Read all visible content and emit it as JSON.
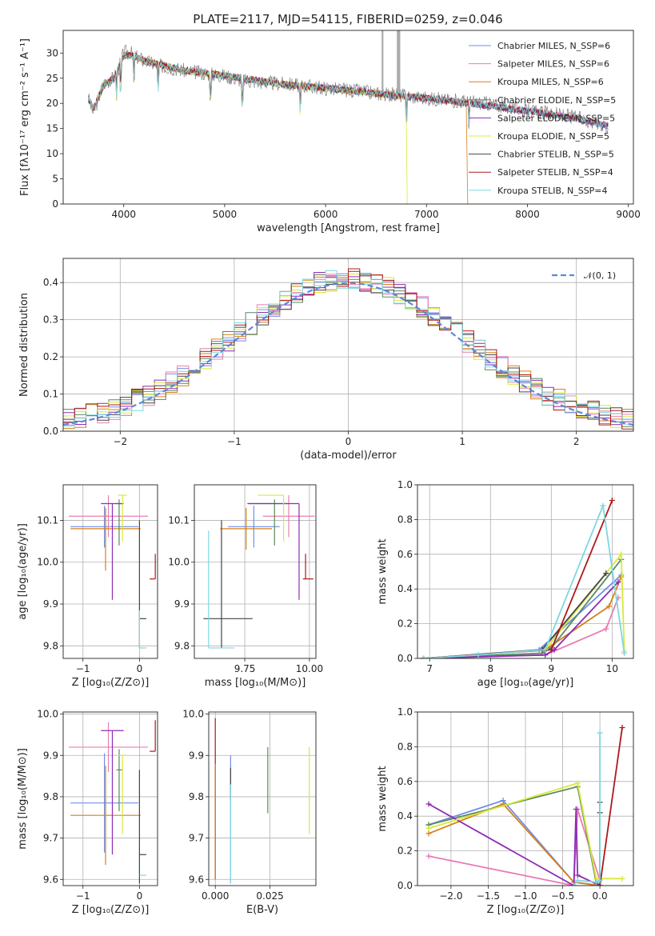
{
  "chart_data": [
    {
      "type": "line",
      "title": "PLATE=2117, MJD=54115, FIBERID=0259, z=0.046",
      "xlabel": "wavelength [Angstrom, rest frame]",
      "ylabel": "Flux [fλ10⁻¹⁷ erg cm⁻² s⁻¹ A⁻¹]",
      "xlim": [
        3400,
        9050
      ],
      "ylim": [
        0,
        34.5
      ],
      "xticks": [
        4000,
        5000,
        6000,
        7000,
        8000,
        9000
      ],
      "yticks": [
        0,
        5,
        10,
        15,
        20,
        25,
        30
      ],
      "grid": false,
      "legend_position": "top-right",
      "observed_spectrum": {
        "wavelength_range": [
          3650,
          8800
        ],
        "color": "#808080",
        "x": [
          3650,
          3700,
          3800,
          3900,
          3950,
          4000,
          4050,
          4100,
          4200,
          4300,
          4400,
          4500,
          4600,
          4800,
          5000,
          5200,
          5500,
          5800,
          6000,
          6300,
          6500,
          6800,
          7000,
          7300,
          7600,
          7800,
          8000,
          8200,
          8400,
          8600,
          8800
        ],
        "y": [
          21,
          18,
          24,
          25,
          27,
          30,
          30.5,
          29.5,
          28.5,
          27.8,
          27.3,
          27,
          26.5,
          26,
          25.5,
          24.5,
          24,
          23.5,
          23,
          22.5,
          22,
          21.5,
          21,
          20.5,
          20,
          19.3,
          18.5,
          18,
          17.5,
          16.5,
          15.5
        ]
      },
      "series": [
        {
          "name": "Chabrier MILES, N_SSP=6",
          "color": "#6f8ee8"
        },
        {
          "name": "Salpeter MILES, N_SSP=6",
          "color": "#e87db3"
        },
        {
          "name": "Kroupa MILES, N_SSP=6",
          "color": "#d6801a"
        },
        {
          "name": "Chabrier ELODIE, N_SSP=5",
          "color": "#5a8a5a"
        },
        {
          "name": "Salpeter ELODIE, N_SSP=5",
          "color": "#8e2cb4"
        },
        {
          "name": "Kroupa ELODIE, N_SSP=5",
          "color": "#d8e83c"
        },
        {
          "name": "Chabrier STELIB, N_SSP=5",
          "color": "#444444"
        },
        {
          "name": "Salpeter STELIB, N_SSP=4",
          "color": "#b01818"
        },
        {
          "name": "Kroupa STELIB, N_SSP=4",
          "color": "#7ed8e0"
        }
      ],
      "model_continuum": {
        "x": [
          3650,
          3700,
          3800,
          3900,
          4000,
          4100,
          4200,
          4400,
          4600,
          5000,
          5500,
          6000,
          6500,
          7000,
          7500,
          8000,
          8500,
          8800
        ],
        "y": [
          21,
          19,
          23.5,
          25,
          29.5,
          29.5,
          28.5,
          27.5,
          26.5,
          25.5,
          24,
          23,
          22,
          21,
          19.8,
          18.5,
          17,
          15.5
        ]
      },
      "series_end_wavelength": [
        8800,
        8800,
        7400,
        8800,
        8800,
        6800,
        8800,
        8800,
        8800
      ],
      "absorption_features": [
        3930,
        3970,
        4100,
        4340,
        4860,
        5175,
        5750,
        6800,
        7420
      ]
    },
    {
      "type": "step",
      "xlabel": "(data-model)/error",
      "ylabel": "Normed distribution",
      "xlim": [
        -2.5,
        2.5
      ],
      "ylim": [
        0,
        0.465
      ],
      "xticks": [
        -2,
        -1,
        0,
        1,
        2
      ],
      "yticks": [
        0.0,
        0.1,
        0.2,
        0.3,
        0.4
      ],
      "grid": true,
      "legend_position": "top-right",
      "legend": [
        "𝒩(0, 1)"
      ],
      "gaussian": {
        "name": "𝒩(0, 1)",
        "mean": 0,
        "sigma": 1,
        "color": "#5e88d8",
        "style": "dashed"
      },
      "bin_edges_range": [
        -2.5,
        2.5
      ],
      "bin_width": 0.1,
      "histograms": [
        {
          "color": "#6f8ee8",
          "seed": 1
        },
        {
          "color": "#e87db3",
          "seed": 2
        },
        {
          "color": "#d6801a",
          "seed": 3
        },
        {
          "color": "#5a8a5a",
          "seed": 4
        },
        {
          "color": "#8e2cb4",
          "seed": 5
        },
        {
          "color": "#d8e83c",
          "seed": 6
        },
        {
          "color": "#444444",
          "seed": 7
        },
        {
          "color": "#b01818",
          "seed": 8
        },
        {
          "color": "#7ed8e0",
          "seed": 9
        }
      ]
    },
    {
      "type": "errorbar",
      "xlabel": "Z [log₁₀(Z/Z⊙)]",
      "ylabel": "age  [log₁₀(age/yr)]",
      "xlim": [
        -1.35,
        0.32
      ],
      "ylim": [
        9.77,
        10.185
      ],
      "xticks": [
        -1,
        0
      ],
      "yticks": [
        9.8,
        9.9,
        10.0,
        10.1
      ],
      "grid": true,
      "points": [
        {
          "color": "#6f8ee8",
          "x": -0.62,
          "y": 10.085,
          "xerr": [
            0.6,
            0.6
          ],
          "yerr": [
            0.05,
            0.05
          ]
        },
        {
          "color": "#e87db3",
          "x": -0.55,
          "y": 10.11,
          "xerr": [
            0.7,
            0.7
          ],
          "yerr": [
            0.05,
            0.05
          ]
        },
        {
          "color": "#d6801a",
          "x": -0.6,
          "y": 10.08,
          "xerr": [
            0.62,
            0.62
          ],
          "yerr": [
            0.1,
            0.05
          ]
        },
        {
          "color": "#5a8a5a",
          "x": -0.36,
          "y": 10.14,
          "xerr": [
            0.05,
            0.05
          ],
          "yerr": [
            0.1,
            0.01
          ]
        },
        {
          "color": "#8e2cb4",
          "x": -0.48,
          "y": 10.14,
          "xerr": [
            0.2,
            0.2
          ],
          "yerr": [
            0.23,
            0.0
          ]
        },
        {
          "color": "#d8e83c",
          "x": -0.3,
          "y": 10.16,
          "xerr": [
            0.08,
            0.08
          ],
          "yerr": [
            0.11,
            0.0
          ]
        },
        {
          "color": "#444444",
          "x": 0.0,
          "y": 9.865,
          "xerr": [
            0.0,
            0.12
          ],
          "yerr": [
            0.07,
            0.235
          ]
        },
        {
          "color": "#b01818",
          "x": 0.28,
          "y": 9.96,
          "xerr": [
            0.1,
            0.0
          ],
          "yerr": [
            0.0,
            0.06
          ]
        },
        {
          "color": "#7ed8e0",
          "x": 0.0,
          "y": 9.795,
          "xerr": [
            0.0,
            0.12
          ],
          "yerr": [
            0.0,
            0.09
          ]
        }
      ]
    },
    {
      "type": "errorbar",
      "xlabel": "mass [log₁₀(M/M⊙)]",
      "ylabel": "",
      "xlim": [
        9.555,
        10.025
      ],
      "ylim": [
        9.77,
        10.185
      ],
      "xticks": [
        9.75,
        10.0
      ],
      "yticks": [
        9.8,
        9.9,
        10.0,
        10.1
      ],
      "grid": true,
      "points": [
        {
          "color": "#6f8ee8",
          "x": 9.785,
          "y": 10.085,
          "xerr": [
            0.1,
            0.1
          ],
          "yerr": [
            0.05,
            0.05
          ]
        },
        {
          "color": "#e87db3",
          "x": 9.92,
          "y": 10.11,
          "xerr": [
            0.1,
            0.1
          ],
          "yerr": [
            0.05,
            0.05
          ]
        },
        {
          "color": "#d6801a",
          "x": 9.755,
          "y": 10.08,
          "xerr": [
            0.1,
            0.1
          ],
          "yerr": [
            0.05,
            0.05
          ]
        },
        {
          "color": "#5a8a5a",
          "x": 9.865,
          "y": 10.14,
          "xerr": [
            0.1,
            0.05
          ],
          "yerr": [
            0.1,
            0.01
          ]
        },
        {
          "color": "#8e2cb4",
          "x": 9.96,
          "y": 10.14,
          "xerr": [
            0.2,
            0.0
          ],
          "yerr": [
            0.23,
            0.0
          ]
        },
        {
          "color": "#d8e83c",
          "x": 9.9,
          "y": 10.16,
          "xerr": [
            0.1,
            0.0
          ],
          "yerr": [
            0.11,
            0.0
          ]
        },
        {
          "color": "#444444",
          "x": 9.66,
          "y": 9.865,
          "xerr": [
            0.07,
            0.12
          ],
          "yerr": [
            0.07,
            0.235
          ]
        },
        {
          "color": "#b01818",
          "x": 9.985,
          "y": 9.96,
          "xerr": [
            0.01,
            0.03
          ],
          "yerr": [
            0.0,
            0.06
          ]
        },
        {
          "color": "#7ed8e0",
          "x": 9.61,
          "y": 9.795,
          "xerr": [
            0.0,
            0.1
          ],
          "yerr": [
            0.0,
            0.28
          ]
        }
      ]
    },
    {
      "type": "line",
      "xlabel": "age  [log₁₀(age/yr)]",
      "ylabel": "mass weight",
      "xlim": [
        6.8,
        10.35
      ],
      "ylim": [
        0,
        1.0
      ],
      "xticks": [
        7,
        8,
        9,
        10
      ],
      "yticks": [
        0.0,
        0.2,
        0.4,
        0.6,
        0.8,
        1.0
      ],
      "grid": true,
      "series": [
        {
          "color": "#6f8ee8",
          "x": [
            6.9,
            7.8,
            8.8,
            10.15
          ],
          "y": [
            0.0,
            0.02,
            0.05,
            0.48
          ]
        },
        {
          "color": "#e87db3",
          "x": [
            6.9,
            8.9,
            9.9,
            10.1
          ],
          "y": [
            0.0,
            0.02,
            0.17,
            0.35
          ]
        },
        {
          "color": "#d6801a",
          "x": [
            6.9,
            8.9,
            9.95,
            10.15
          ],
          "y": [
            0.0,
            0.05,
            0.3,
            0.47
          ]
        },
        {
          "color": "#5a8a5a",
          "x": [
            6.9,
            8.85,
            9.0,
            10.15
          ],
          "y": [
            0.0,
            0.03,
            0.06,
            0.57
          ]
        },
        {
          "color": "#8e2cb4",
          "x": [
            6.9,
            8.9,
            9.05,
            10.1
          ],
          "y": [
            0.0,
            0.02,
            0.05,
            0.44
          ]
        },
        {
          "color": "#d8e83c",
          "x": [
            6.9,
            8.9,
            10.15,
            10.2
          ],
          "y": [
            0.0,
            0.05,
            0.6,
            0.04
          ]
        },
        {
          "color": "#444444",
          "x": [
            6.9,
            8.85,
            9.9
          ],
          "y": [
            0.0,
            0.05,
            0.49
          ]
        },
        {
          "color": "#b01818",
          "x": [
            6.9,
            9.0,
            10.0
          ],
          "y": [
            0.0,
            0.05,
            0.91
          ]
        },
        {
          "color": "#7ed8e0",
          "x": [
            6.9,
            7.8,
            8.9,
            9.85,
            10.2
          ],
          "y": [
            0.0,
            0.02,
            0.05,
            0.88,
            0.03
          ]
        }
      ]
    },
    {
      "type": "errorbar",
      "xlabel": "Z [log₁₀(Z/Z⊙)]",
      "ylabel": "mass [log₁₀(M/M⊙)]",
      "xlim": [
        -1.35,
        0.32
      ],
      "ylim": [
        9.585,
        10.005
      ],
      "xticks": [
        -1,
        0
      ],
      "yticks": [
        9.6,
        9.7,
        9.8,
        9.9,
        10.0
      ],
      "grid": true,
      "points": [
        {
          "color": "#6f8ee8",
          "x": -0.62,
          "y": 9.785,
          "xerr": [
            0.6,
            0.6
          ],
          "yerr": [
            0.12,
            0.12
          ]
        },
        {
          "color": "#e87db3",
          "x": -0.55,
          "y": 9.92,
          "xerr": [
            0.7,
            0.7
          ],
          "yerr": [
            0.06,
            0.06
          ]
        },
        {
          "color": "#d6801a",
          "x": -0.6,
          "y": 9.755,
          "xerr": [
            0.62,
            0.62
          ],
          "yerr": [
            0.12,
            0.12
          ]
        },
        {
          "color": "#5a8a5a",
          "x": -0.36,
          "y": 9.865,
          "xerr": [
            0.05,
            0.05
          ],
          "yerr": [
            0.1,
            0.05
          ]
        },
        {
          "color": "#8e2cb4",
          "x": -0.48,
          "y": 9.96,
          "xerr": [
            0.2,
            0.2
          ],
          "yerr": [
            0.3,
            0.0
          ]
        },
        {
          "color": "#d8e83c",
          "x": -0.3,
          "y": 9.9,
          "xerr": [
            0.08,
            0.08
          ],
          "yerr": [
            0.19,
            0.0
          ]
        },
        {
          "color": "#444444",
          "x": 0.0,
          "y": 9.66,
          "xerr": [
            0.0,
            0.12
          ],
          "yerr": [
            0.07,
            0.205
          ]
        },
        {
          "color": "#b01818",
          "x": 0.28,
          "y": 9.91,
          "xerr": [
            0.1,
            0.0
          ],
          "yerr": [
            0.0,
            0.075
          ]
        },
        {
          "color": "#7ed8e0",
          "x": 0.0,
          "y": 9.61,
          "xerr": [
            0.0,
            0.12
          ],
          "yerr": [
            0.0,
            0.0
          ]
        }
      ]
    },
    {
      "type": "errorbar",
      "xlabel": "E(B-V)",
      "ylabel": "",
      "xlim": [
        -0.003,
        0.046
      ],
      "ylim": [
        9.585,
        10.005
      ],
      "xticks": [
        0.0,
        0.025
      ],
      "yticks": [
        9.6,
        9.7,
        9.8,
        9.9,
        10.0
      ],
      "grid": true,
      "points": [
        {
          "color": "#b01818",
          "x": 0.0,
          "y": 9.8,
          "xerr": [
            0,
            0
          ],
          "yerr": [
            0.2,
            0.19
          ]
        },
        {
          "color": "#d6801a",
          "x": 0.0,
          "y": 9.76,
          "xerr": [
            0,
            0
          ],
          "yerr": [
            0.16,
            0.12
          ]
        },
        {
          "color": "#6f8ee8",
          "x": 0.007,
          "y": 9.8,
          "xerr": [
            0,
            0
          ],
          "yerr": [
            0.21,
            0.1
          ]
        },
        {
          "color": "#444444",
          "x": 0.007,
          "y": 9.79,
          "xerr": [
            0,
            0
          ],
          "yerr": [
            0.0,
            0.08
          ]
        },
        {
          "color": "#7ed8e0",
          "x": 0.007,
          "y": 9.68,
          "xerr": [
            0,
            0
          ],
          "yerr": [
            0.09,
            0.15
          ]
        },
        {
          "color": "#5a8a5a",
          "x": 0.024,
          "y": 9.84,
          "xerr": [
            0,
            0
          ],
          "yerr": [
            0.08,
            0.08
          ]
        },
        {
          "color": "#d8e83c",
          "x": 0.043,
          "y": 9.81,
          "xerr": [
            0,
            0
          ],
          "yerr": [
            0.1,
            0.11
          ]
        }
      ]
    },
    {
      "type": "line",
      "xlabel": "Z [log₁₀(Z/Z⊙)]",
      "ylabel": "mass weight",
      "xlim": [
        -2.45,
        0.45
      ],
      "ylim": [
        0,
        1.0
      ],
      "xticks": [
        -2.0,
        -1.5,
        -1.0,
        -0.5,
        0.0
      ],
      "yticks": [
        0.0,
        0.2,
        0.4,
        0.6,
        0.8,
        1.0
      ],
      "grid": true,
      "series": [
        {
          "color": "#6f8ee8",
          "x": [
            -2.3,
            -1.3,
            -0.35,
            0.0
          ],
          "y": [
            0.35,
            0.49,
            0.02,
            0.0
          ]
        },
        {
          "color": "#e87db3",
          "x": [
            -2.3,
            -0.35,
            -0.3,
            0.0
          ],
          "y": [
            0.17,
            0.0,
            0.44,
            0.03
          ]
        },
        {
          "color": "#d6801a",
          "x": [
            -2.3,
            -1.3,
            -0.35,
            0.0
          ],
          "y": [
            0.3,
            0.47,
            0.02,
            0.0
          ]
        },
        {
          "color": "#5a8a5a",
          "x": [
            -2.3,
            -0.3,
            -0.05,
            0.0
          ],
          "y": [
            0.35,
            0.57,
            0.02,
            0.0
          ]
        },
        {
          "color": "#8e2cb4",
          "x": [
            -2.3,
            -0.35,
            -0.32,
            -0.3,
            0.0
          ],
          "y": [
            0.47,
            0.0,
            0.44,
            0.06,
            0.0
          ]
        },
        {
          "color": "#d8e83c",
          "x": [
            -2.3,
            -0.3,
            -0.05,
            0.3
          ],
          "y": [
            0.33,
            0.59,
            0.04,
            0.04
          ]
        },
        {
          "color": "#444444",
          "x": [
            0.0,
            0.0,
            0.0
          ],
          "y": [
            0.0,
            0.42,
            0.48
          ]
        },
        {
          "color": "#b01818",
          "x": [
            0.0,
            0.3
          ],
          "y": [
            0.0,
            0.91
          ]
        },
        {
          "color": "#7ed8e0",
          "x": [
            -0.35,
            -0.3,
            -0.05,
            0.0,
            0.0
          ],
          "y": [
            0.0,
            0.03,
            0.02,
            0.03,
            0.88
          ]
        }
      ]
    }
  ]
}
